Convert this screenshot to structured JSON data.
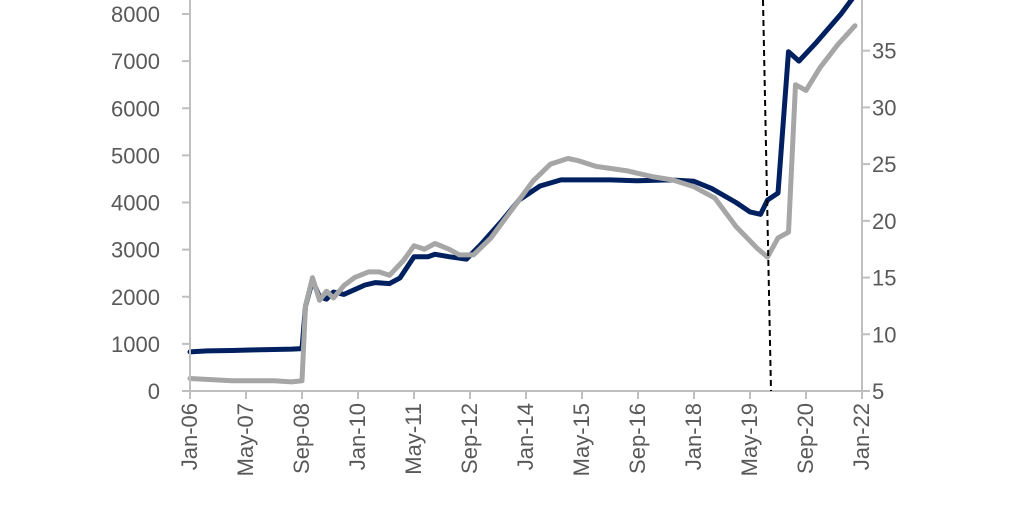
{
  "chart_data": {
    "type": "line",
    "title": "",
    "xlabel": "",
    "ylabel": "",
    "y2label": "",
    "x_tick_labels": [
      "Jan-06",
      "May-07",
      "Sep-08",
      "Jan-10",
      "May-11",
      "Sep-12",
      "Jan-14",
      "May-15",
      "Sep-16",
      "Jan-18",
      "May-19",
      "Sep-20",
      "Jan-22"
    ],
    "x_range": [
      "2006-01",
      "2022-01"
    ],
    "y_left": {
      "range": [
        0,
        8000
      ],
      "ticks": [
        "0",
        "1000",
        "2000",
        "3000",
        "4000",
        "5000",
        "6000",
        "7000",
        "8000"
      ]
    },
    "y_right": {
      "range": [
        5,
        37
      ],
      "ticks": [
        "5",
        "10",
        "15",
        "20",
        "25",
        "30",
        "35"
      ]
    },
    "grid": false,
    "legend": "none",
    "vertical_marker": {
      "x": "2019-11",
      "style": "dashed"
    },
    "series": [
      {
        "axis": "left",
        "color": "#002060",
        "points": [
          [
            "2006-01",
            830
          ],
          [
            "2006-06",
            850
          ],
          [
            "2007-01",
            860
          ],
          [
            "2007-06",
            870
          ],
          [
            "2008-01",
            880
          ],
          [
            "2008-06",
            890
          ],
          [
            "2008-09",
            900
          ],
          [
            "2008-10",
            1800
          ],
          [
            "2008-12",
            2350
          ],
          [
            "2009-02",
            2000
          ],
          [
            "2009-04",
            1950
          ],
          [
            "2009-06",
            2100
          ],
          [
            "2009-09",
            2050
          ],
          [
            "2009-12",
            2150
          ],
          [
            "2010-03",
            2250
          ],
          [
            "2010-06",
            2300
          ],
          [
            "2010-10",
            2280
          ],
          [
            "2011-01",
            2400
          ],
          [
            "2011-05",
            2850
          ],
          [
            "2011-09",
            2850
          ],
          [
            "2011-11",
            2900
          ],
          [
            "2012-03",
            2850
          ],
          [
            "2012-08",
            2800
          ],
          [
            "2012-12",
            3100
          ],
          [
            "2013-06",
            3600
          ],
          [
            "2013-11",
            4050
          ],
          [
            "2014-05",
            4350
          ],
          [
            "2014-11",
            4480
          ],
          [
            "2015-06",
            4480
          ],
          [
            "2016-01",
            4480
          ],
          [
            "2016-09",
            4460
          ],
          [
            "2017-06",
            4480
          ],
          [
            "2018-01",
            4450
          ],
          [
            "2018-06",
            4300
          ],
          [
            "2019-01",
            4000
          ],
          [
            "2019-05",
            3800
          ],
          [
            "2019-08",
            3750
          ],
          [
            "2019-10",
            4050
          ],
          [
            "2020-01",
            4200
          ],
          [
            "2020-04",
            7200
          ],
          [
            "2020-07",
            7000
          ],
          [
            "2020-12",
            7400
          ],
          [
            "2021-07",
            8000
          ],
          [
            "2021-11",
            8400
          ]
        ]
      },
      {
        "axis": "right",
        "color": "#a6a6a6",
        "points": [
          [
            "2006-01",
            6.1
          ],
          [
            "2007-01",
            5.9
          ],
          [
            "2008-01",
            5.9
          ],
          [
            "2008-06",
            5.8
          ],
          [
            "2008-09",
            5.9
          ],
          [
            "2008-10",
            12.5
          ],
          [
            "2008-12",
            15
          ],
          [
            "2009-02",
            13
          ],
          [
            "2009-04",
            13.8
          ],
          [
            "2009-06",
            13.2
          ],
          [
            "2009-09",
            14.3
          ],
          [
            "2009-12",
            15
          ],
          [
            "2010-04",
            15.5
          ],
          [
            "2010-07",
            15.5
          ],
          [
            "2010-10",
            15.2
          ],
          [
            "2011-02",
            16.5
          ],
          [
            "2011-05",
            17.8
          ],
          [
            "2011-08",
            17.5
          ],
          [
            "2011-11",
            18
          ],
          [
            "2012-03",
            17.5
          ],
          [
            "2012-06",
            17
          ],
          [
            "2012-10",
            17
          ],
          [
            "2013-03",
            18.5
          ],
          [
            "2013-09",
            21
          ],
          [
            "2014-03",
            23.5
          ],
          [
            "2014-08",
            25
          ],
          [
            "2015-01",
            25.5
          ],
          [
            "2015-04",
            25.3
          ],
          [
            "2015-09",
            24.8
          ],
          [
            "2016-06",
            24.4
          ],
          [
            "2017-01",
            23.9
          ],
          [
            "2017-07",
            23.6
          ],
          [
            "2018-01",
            23
          ],
          [
            "2018-07",
            22
          ],
          [
            "2019-01",
            19.5
          ],
          [
            "2019-07",
            17.6
          ],
          [
            "2019-10",
            16.8
          ],
          [
            "2020-01",
            18.5
          ],
          [
            "2020-04",
            19
          ],
          [
            "2020-06",
            32
          ],
          [
            "2020-09",
            31.5
          ],
          [
            "2021-01",
            33.5
          ],
          [
            "2021-06",
            35.5
          ],
          [
            "2021-11",
            37.2
          ]
        ]
      }
    ]
  }
}
